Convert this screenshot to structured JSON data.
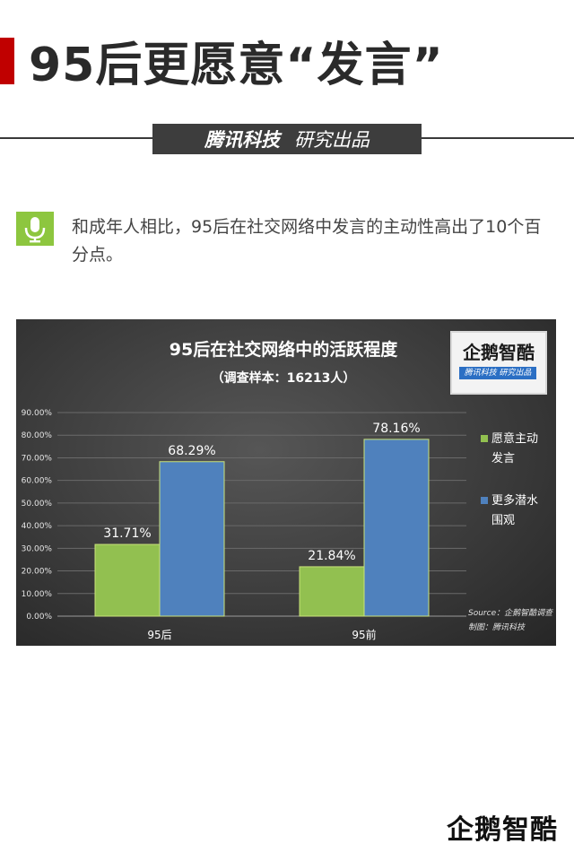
{
  "header": {
    "title": "95后更愿意“发言”",
    "brand_bold": "腾讯科技",
    "brand_text": "研究出品"
  },
  "intro": {
    "icon": "microphone-icon",
    "text": "和成年人相比，95后在社交网络中发言的主动性高出了10个百分点。"
  },
  "logo": {
    "name": "企鹅智酷",
    "sub": "腾讯科技  研究出品"
  },
  "footer": {
    "logo": "企鹅智酷"
  },
  "colors": {
    "accent_red": "#c00000",
    "series_green": "#92c050",
    "series_blue": "#4f81bd",
    "icon_green": "#8dc63f"
  },
  "chart_data": {
    "type": "bar",
    "title": "95后在社交网络中的活跃程度",
    "subtitle": "（调查样本：16213人）",
    "categories": [
      "95后",
      "95前"
    ],
    "series": [
      {
        "name": "愿意主动发言",
        "values": [
          31.71,
          21.84
        ],
        "labels": [
          "31.71%",
          "21.84%"
        ]
      },
      {
        "name": "更多潜水围观",
        "values": [
          68.29,
          78.16
        ],
        "labels": [
          "68.29%",
          "78.16%"
        ]
      }
    ],
    "yticks": [
      "0.00%",
      "10.00%",
      "20.00%",
      "30.00%",
      "40.00%",
      "50.00%",
      "60.00%",
      "70.00%",
      "80.00%",
      "90.00%"
    ],
    "ylim": [
      0,
      90
    ],
    "legend_position": "right",
    "grid": true,
    "source": "Source：企鹅智酷调查",
    "maker": "制图：腾讯科技"
  }
}
